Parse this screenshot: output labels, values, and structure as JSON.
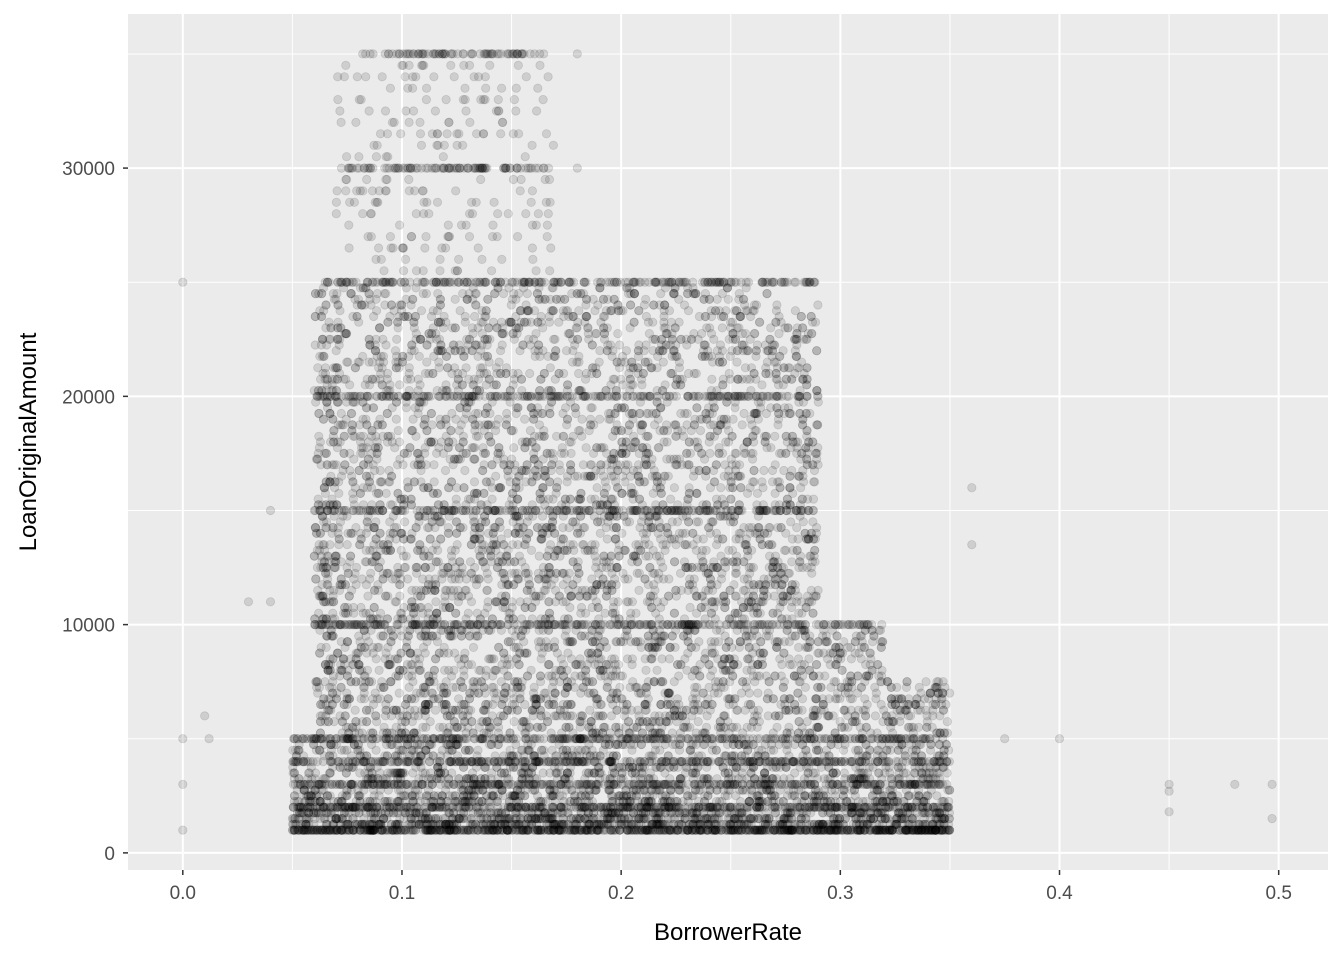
{
  "chart_data": {
    "type": "scatter",
    "title": "",
    "xlabel": "BorrowerRate",
    "ylabel": "LoanOriginalAmount",
    "xlim": [
      -0.025,
      0.5225
    ],
    "ylim": [
      -750,
      36750
    ],
    "x_ticks": [
      0.0,
      0.1,
      0.2,
      0.3,
      0.4,
      0.5
    ],
    "x_tick_labels": [
      "0.0",
      "0.1",
      "0.2",
      "0.3",
      "0.4",
      "0.5"
    ],
    "y_ticks": [
      0,
      10000,
      20000,
      30000
    ],
    "y_tick_labels": [
      "0",
      "10000",
      "20000",
      "30000"
    ],
    "grid": true,
    "point_color": "#000000",
    "point_alpha": 0.12,
    "panel_background": "#ebebeb",
    "grid_color": "#ffffff",
    "dense_bands": [
      {
        "amount": 35000,
        "rate_min": 0.085,
        "rate_max": 0.165
      },
      {
        "amount": 30000,
        "rate_min": 0.075,
        "rate_max": 0.165
      },
      {
        "amount": 25000,
        "rate_min": 0.065,
        "rate_max": 0.29
      },
      {
        "amount": 20000,
        "rate_min": 0.06,
        "rate_max": 0.29
      },
      {
        "amount": 15000,
        "rate_min": 0.06,
        "rate_max": 0.29
      },
      {
        "amount": 10000,
        "rate_min": 0.06,
        "rate_max": 0.32
      },
      {
        "amount": 5000,
        "rate_min": 0.05,
        "rate_max": 0.35
      },
      {
        "amount": 4000,
        "rate_min": 0.05,
        "rate_max": 0.35
      },
      {
        "amount": 3000,
        "rate_min": 0.05,
        "rate_max": 0.35
      },
      {
        "amount": 2000,
        "rate_min": 0.05,
        "rate_max": 0.35
      },
      {
        "amount": 1000,
        "rate_min": 0.05,
        "rate_max": 0.35
      }
    ],
    "outliers": [
      {
        "x": 0.0,
        "y": 25000
      },
      {
        "x": 0.0,
        "y": 5000
      },
      {
        "x": 0.0,
        "y": 3000
      },
      {
        "x": 0.0,
        "y": 1000
      },
      {
        "x": 0.01,
        "y": 6000
      },
      {
        "x": 0.012,
        "y": 5000
      },
      {
        "x": 0.03,
        "y": 11000
      },
      {
        "x": 0.04,
        "y": 15000
      },
      {
        "x": 0.04,
        "y": 11000
      },
      {
        "x": 0.375,
        "y": 5000
      },
      {
        "x": 0.4,
        "y": 5000
      },
      {
        "x": 0.36,
        "y": 16000
      },
      {
        "x": 0.36,
        "y": 13500
      },
      {
        "x": 0.45,
        "y": 3000
      },
      {
        "x": 0.45,
        "y": 2700
      },
      {
        "x": 0.45,
        "y": 1800
      },
      {
        "x": 0.48,
        "y": 3000
      },
      {
        "x": 0.497,
        "y": 3000
      },
      {
        "x": 0.497,
        "y": 1500
      },
      {
        "x": 0.18,
        "y": 35000
      },
      {
        "x": 0.18,
        "y": 30000
      }
    ]
  }
}
